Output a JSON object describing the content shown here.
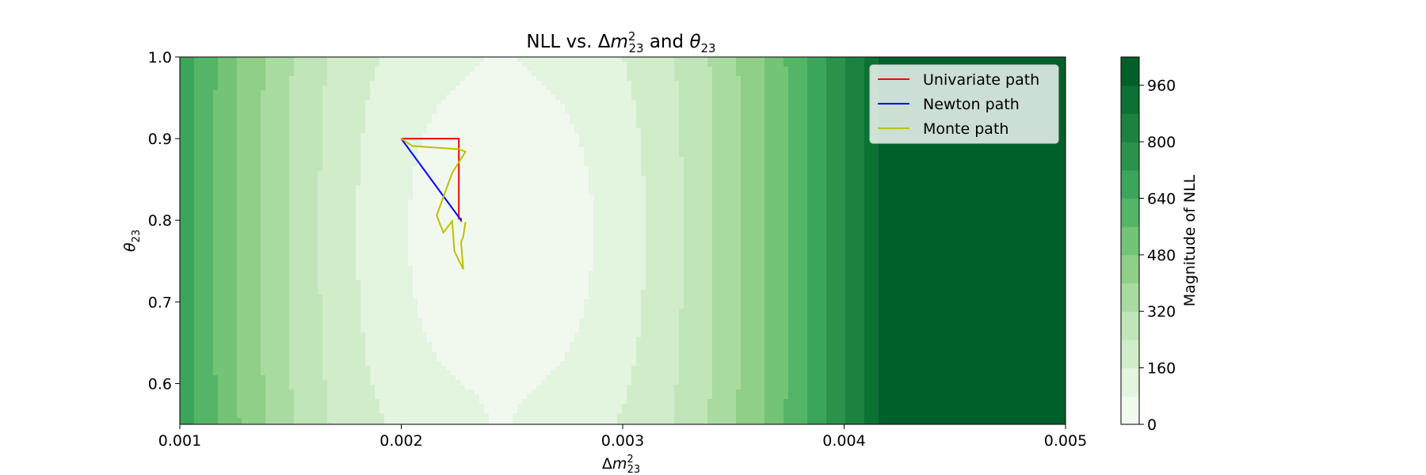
{
  "chart_data": {
    "type": "contour",
    "title": "NLL vs. Δm²₂₃ and θ₂₃",
    "title_parts": {
      "pre": "NLL vs. Δ",
      "m": "m",
      "sup": "2",
      "sub": "23",
      "mid": " and ",
      "theta": "θ",
      "theta_sub": "23"
    },
    "xlabel_parts": {
      "delta": "Δ",
      "m": "m",
      "sup": "2",
      "sub": "23"
    },
    "ylabel_parts": {
      "theta": "θ",
      "sub": "23"
    },
    "xlim": [
      0.001,
      0.005
    ],
    "ylim": [
      0.55,
      1.0
    ],
    "xticks": [
      {
        "value": 0.001,
        "label": "0.001"
      },
      {
        "value": 0.002,
        "label": "0.002"
      },
      {
        "value": 0.003,
        "label": "0.003"
      },
      {
        "value": 0.004,
        "label": "0.004"
      },
      {
        "value": 0.005,
        "label": "0.005"
      }
    ],
    "yticks": [
      {
        "value": 0.6,
        "label": "0.6"
      },
      {
        "value": 0.7,
        "label": "0.7"
      },
      {
        "value": 0.8,
        "label": "0.8"
      },
      {
        "value": 0.9,
        "label": "0.9"
      },
      {
        "value": 1.0,
        "label": "1.0"
      }
    ],
    "colorbar": {
      "label": "Magnitude of NLL",
      "levels": [
        0,
        80,
        160,
        240,
        320,
        400,
        480,
        560,
        640,
        720,
        800,
        880,
        960,
        1040
      ],
      "colors": [
        "#f1f9ef",
        "#e3f4df",
        "#d1ecc9",
        "#bfe5b8",
        "#a9dba0",
        "#8fcf88",
        "#73c476",
        "#55b567",
        "#3ba55b",
        "#2a924a",
        "#1b8240",
        "#0b7233",
        "#00602a"
      ],
      "ticks": [
        {
          "value": 0,
          "label": "0"
        },
        {
          "value": 160,
          "label": "160"
        },
        {
          "value": 320,
          "label": "320"
        },
        {
          "value": 480,
          "label": "480"
        },
        {
          "value": 640,
          "label": "640"
        },
        {
          "value": 800,
          "label": "800"
        },
        {
          "value": 960,
          "label": "960"
        }
      ]
    },
    "legend_position": "top-right",
    "series": [
      {
        "name": "Univariate path",
        "color": "#ff0000",
        "points": [
          [
            0.002,
            0.9
          ],
          [
            0.00226,
            0.9
          ],
          [
            0.00226,
            0.802
          ],
          [
            0.00227,
            0.802
          ],
          [
            0.00227,
            0.798
          ]
        ]
      },
      {
        "name": "Newton path",
        "color": "#0000ff",
        "points": [
          [
            0.002,
            0.9
          ],
          [
            0.00227,
            0.8
          ]
        ]
      },
      {
        "name": "Monte path",
        "color": "#bfbf00",
        "points": [
          [
            0.002,
            0.9
          ],
          [
            0.00205,
            0.891
          ],
          [
            0.00226,
            0.887
          ],
          [
            0.00229,
            0.884
          ],
          [
            0.00223,
            0.858
          ],
          [
            0.00216,
            0.806
          ],
          [
            0.00219,
            0.785
          ],
          [
            0.00223,
            0.799
          ],
          [
            0.00224,
            0.762
          ],
          [
            0.00228,
            0.74
          ],
          [
            0.00227,
            0.773
          ],
          [
            0.00228,
            0.78
          ],
          [
            0.00229,
            0.798
          ]
        ]
      }
    ]
  }
}
